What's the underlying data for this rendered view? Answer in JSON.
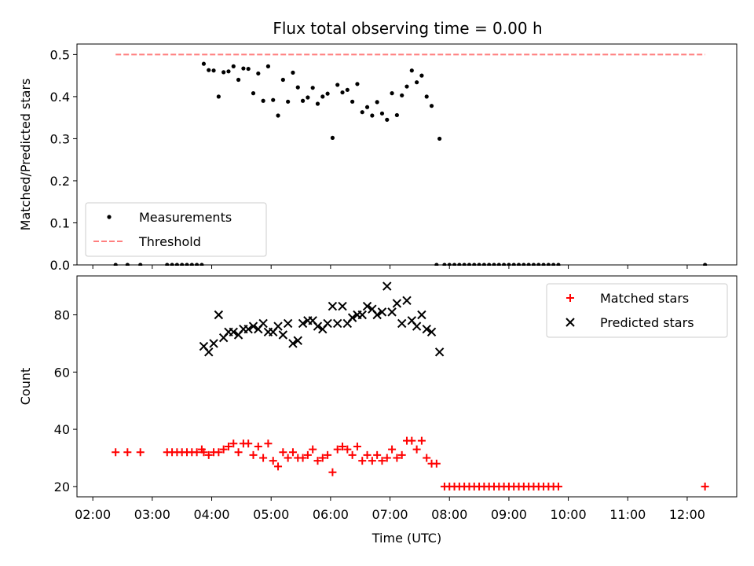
{
  "chart_data": [
    {
      "type": "scatter",
      "title": "Flux total observing time = 0.00 h",
      "xlabel": "",
      "ylabel": "Matched/Predicted stars",
      "xlim": [
        "01:44",
        "12:50"
      ],
      "ylim": [
        0,
        0.525
      ],
      "yticks": [
        "0.0",
        "0.1",
        "0.2",
        "0.3",
        "0.4",
        "0.5"
      ],
      "grid": false,
      "legend_placement": "lower-left",
      "series": [
        {
          "name": "Measurements",
          "kind": "scatter",
          "color": "#000000",
          "points": [
            [
              "02:23",
              0
            ],
            [
              "02:35",
              0
            ],
            [
              "02:48",
              0
            ],
            [
              "03:15",
              0
            ],
            [
              "03:20",
              0
            ],
            [
              "03:25",
              0
            ],
            [
              "03:30",
              0
            ],
            [
              "03:35",
              0
            ],
            [
              "03:40",
              0
            ],
            [
              "03:45",
              0
            ],
            [
              "03:50",
              0
            ],
            [
              "03:52",
              0.478
            ],
            [
              "03:57",
              0.463
            ],
            [
              "04:02",
              0.462
            ],
            [
              "04:07",
              0.4
            ],
            [
              "04:12",
              0.458
            ],
            [
              "04:17",
              0.46
            ],
            [
              "04:22",
              0.472
            ],
            [
              "04:27",
              0.44
            ],
            [
              "04:32",
              0.467
            ],
            [
              "04:37",
              0.466
            ],
            [
              "04:42",
              0.408
            ],
            [
              "04:47",
              0.455
            ],
            [
              "04:52",
              0.39
            ],
            [
              "04:57",
              0.472
            ],
            [
              "05:02",
              0.392
            ],
            [
              "05:07",
              0.355
            ],
            [
              "05:12",
              0.44
            ],
            [
              "05:17",
              0.388
            ],
            [
              "05:22",
              0.457
            ],
            [
              "05:27",
              0.422
            ],
            [
              "05:32",
              0.39
            ],
            [
              "05:37",
              0.398
            ],
            [
              "05:42",
              0.421
            ],
            [
              "05:47",
              0.383
            ],
            [
              "05:52",
              0.4
            ],
            [
              "05:57",
              0.407
            ],
            [
              "06:02",
              0.302
            ],
            [
              "06:07",
              0.428
            ],
            [
              "06:12",
              0.41
            ],
            [
              "06:17",
              0.416
            ],
            [
              "06:22",
              0.388
            ],
            [
              "06:27",
              0.43
            ],
            [
              "06:32",
              0.363
            ],
            [
              "06:37",
              0.375
            ],
            [
              "06:42",
              0.355
            ],
            [
              "06:47",
              0.387
            ],
            [
              "06:52",
              0.36
            ],
            [
              "06:57",
              0.345
            ],
            [
              "07:02",
              0.408
            ],
            [
              "07:07",
              0.356
            ],
            [
              "07:12",
              0.403
            ],
            [
              "07:17",
              0.424
            ],
            [
              "07:22",
              0.462
            ],
            [
              "07:27",
              0.434
            ],
            [
              "07:32",
              0.45
            ],
            [
              "07:37",
              0.4
            ],
            [
              "07:42",
              0.378
            ],
            [
              "07:50",
              0.3
            ],
            [
              "07:47",
              0
            ],
            [
              "07:55",
              0
            ],
            [
              "08:00",
              0
            ],
            [
              "08:05",
              0
            ],
            [
              "08:10",
              0
            ],
            [
              "08:15",
              0
            ],
            [
              "08:20",
              0
            ],
            [
              "08:25",
              0
            ],
            [
              "08:30",
              0
            ],
            [
              "08:35",
              0
            ],
            [
              "08:40",
              0
            ],
            [
              "08:45",
              0
            ],
            [
              "08:50",
              0
            ],
            [
              "08:55",
              0
            ],
            [
              "09:00",
              0
            ],
            [
              "09:05",
              0
            ],
            [
              "09:10",
              0
            ],
            [
              "09:15",
              0
            ],
            [
              "09:20",
              0
            ],
            [
              "09:25",
              0
            ],
            [
              "09:30",
              0
            ],
            [
              "09:35",
              0
            ],
            [
              "09:40",
              0
            ],
            [
              "09:45",
              0
            ],
            [
              "09:50",
              0
            ],
            [
              "12:18",
              0
            ]
          ]
        },
        {
          "name": "Threshold",
          "kind": "dashed-line",
          "color": "#ff7f7f",
          "y": 0.5,
          "x_range": [
            "02:23",
            "12:18"
          ]
        }
      ]
    },
    {
      "type": "scatter",
      "title": "",
      "xlabel": "Time (UTC)",
      "ylabel": "Count",
      "xlim": [
        "01:44",
        "12:50"
      ],
      "ylim": [
        16.4,
        93.6
      ],
      "yticks": [
        "20",
        "40",
        "60",
        "80"
      ],
      "xticks": [
        "02:00",
        "03:00",
        "04:00",
        "05:00",
        "06:00",
        "07:00",
        "08:00",
        "09:00",
        "10:00",
        "11:00",
        "12:00"
      ],
      "grid": false,
      "legend_placement": "upper-right",
      "series": [
        {
          "name": "Matched stars",
          "kind": "plus",
          "color": "#ff0000",
          "points": [
            [
              "02:23",
              32
            ],
            [
              "02:35",
              32
            ],
            [
              "02:48",
              32
            ],
            [
              "03:15",
              32
            ],
            [
              "03:20",
              32
            ],
            [
              "03:25",
              32
            ],
            [
              "03:30",
              32
            ],
            [
              "03:35",
              32
            ],
            [
              "03:40",
              32
            ],
            [
              "03:45",
              32
            ],
            [
              "03:50",
              33
            ],
            [
              "03:52",
              32
            ],
            [
              "03:57",
              31
            ],
            [
              "04:02",
              32
            ],
            [
              "04:07",
              32
            ],
            [
              "04:12",
              33
            ],
            [
              "04:17",
              34
            ],
            [
              "04:22",
              35
            ],
            [
              "04:27",
              32
            ],
            [
              "04:32",
              35
            ],
            [
              "04:37",
              35
            ],
            [
              "04:42",
              31
            ],
            [
              "04:47",
              34
            ],
            [
              "04:52",
              30
            ],
            [
              "04:57",
              35
            ],
            [
              "05:02",
              29
            ],
            [
              "05:07",
              27
            ],
            [
              "05:12",
              32
            ],
            [
              "05:17",
              30
            ],
            [
              "05:22",
              32
            ],
            [
              "05:27",
              30
            ],
            [
              "05:32",
              30
            ],
            [
              "05:37",
              31
            ],
            [
              "05:42",
              33
            ],
            [
              "05:47",
              29
            ],
            [
              "05:52",
              30
            ],
            [
              "05:57",
              31
            ],
            [
              "06:02",
              25
            ],
            [
              "06:07",
              33
            ],
            [
              "06:12",
              34
            ],
            [
              "06:17",
              33
            ],
            [
              "06:22",
              31
            ],
            [
              "06:27",
              34
            ],
            [
              "06:32",
              29
            ],
            [
              "06:37",
              31
            ],
            [
              "06:42",
              29
            ],
            [
              "06:47",
              31
            ],
            [
              "06:52",
              29
            ],
            [
              "06:57",
              30
            ],
            [
              "07:02",
              33
            ],
            [
              "07:07",
              30
            ],
            [
              "07:12",
              31
            ],
            [
              "07:17",
              36
            ],
            [
              "07:22",
              36
            ],
            [
              "07:27",
              33
            ],
            [
              "07:32",
              36
            ],
            [
              "07:37",
              30
            ],
            [
              "07:42",
              28
            ],
            [
              "07:47",
              28
            ],
            [
              "07:55",
              20
            ],
            [
              "08:00",
              20
            ],
            [
              "08:05",
              20
            ],
            [
              "08:10",
              20
            ],
            [
              "08:15",
              20
            ],
            [
              "08:20",
              20
            ],
            [
              "08:25",
              20
            ],
            [
              "08:30",
              20
            ],
            [
              "08:35",
              20
            ],
            [
              "08:40",
              20
            ],
            [
              "08:45",
              20
            ],
            [
              "08:50",
              20
            ],
            [
              "08:55",
              20
            ],
            [
              "09:00",
              20
            ],
            [
              "09:05",
              20
            ],
            [
              "09:10",
              20
            ],
            [
              "09:15",
              20
            ],
            [
              "09:20",
              20
            ],
            [
              "09:25",
              20
            ],
            [
              "09:30",
              20
            ],
            [
              "09:35",
              20
            ],
            [
              "09:40",
              20
            ],
            [
              "09:45",
              20
            ],
            [
              "09:50",
              20
            ],
            [
              "12:18",
              20
            ]
          ]
        },
        {
          "name": "Predicted stars",
          "kind": "x",
          "color": "#000000",
          "points": [
            [
              "03:52",
              69
            ],
            [
              "03:57",
              67
            ],
            [
              "04:02",
              70
            ],
            [
              "04:07",
              80
            ],
            [
              "04:12",
              72
            ],
            [
              "04:17",
              74
            ],
            [
              "04:22",
              74
            ],
            [
              "04:27",
              73
            ],
            [
              "04:32",
              75
            ],
            [
              "04:37",
              75
            ],
            [
              "04:42",
              76
            ],
            [
              "04:47",
              75
            ],
            [
              "04:52",
              77
            ],
            [
              "04:57",
              74
            ],
            [
              "05:02",
              74
            ],
            [
              "05:07",
              76
            ],
            [
              "05:12",
              73
            ],
            [
              "05:17",
              77
            ],
            [
              "05:22",
              70
            ],
            [
              "05:27",
              71
            ],
            [
              "05:32",
              77
            ],
            [
              "05:37",
              78
            ],
            [
              "05:42",
              78
            ],
            [
              "05:47",
              76
            ],
            [
              "05:52",
              75
            ],
            [
              "05:57",
              77
            ],
            [
              "06:02",
              83
            ],
            [
              "06:07",
              77
            ],
            [
              "06:12",
              83
            ],
            [
              "06:17",
              77
            ],
            [
              "06:22",
              79
            ],
            [
              "06:27",
              80
            ],
            [
              "06:32",
              80
            ],
            [
              "06:37",
              83
            ],
            [
              "06:42",
              82
            ],
            [
              "06:47",
              80
            ],
            [
              "06:52",
              81
            ],
            [
              "06:57",
              90
            ],
            [
              "07:02",
              81
            ],
            [
              "07:07",
              84
            ],
            [
              "07:12",
              77
            ],
            [
              "07:17",
              85
            ],
            [
              "07:22",
              78
            ],
            [
              "07:27",
              76
            ],
            [
              "07:32",
              80
            ],
            [
              "07:37",
              75
            ],
            [
              "07:42",
              74
            ],
            [
              "07:50",
              67
            ]
          ]
        }
      ]
    }
  ]
}
